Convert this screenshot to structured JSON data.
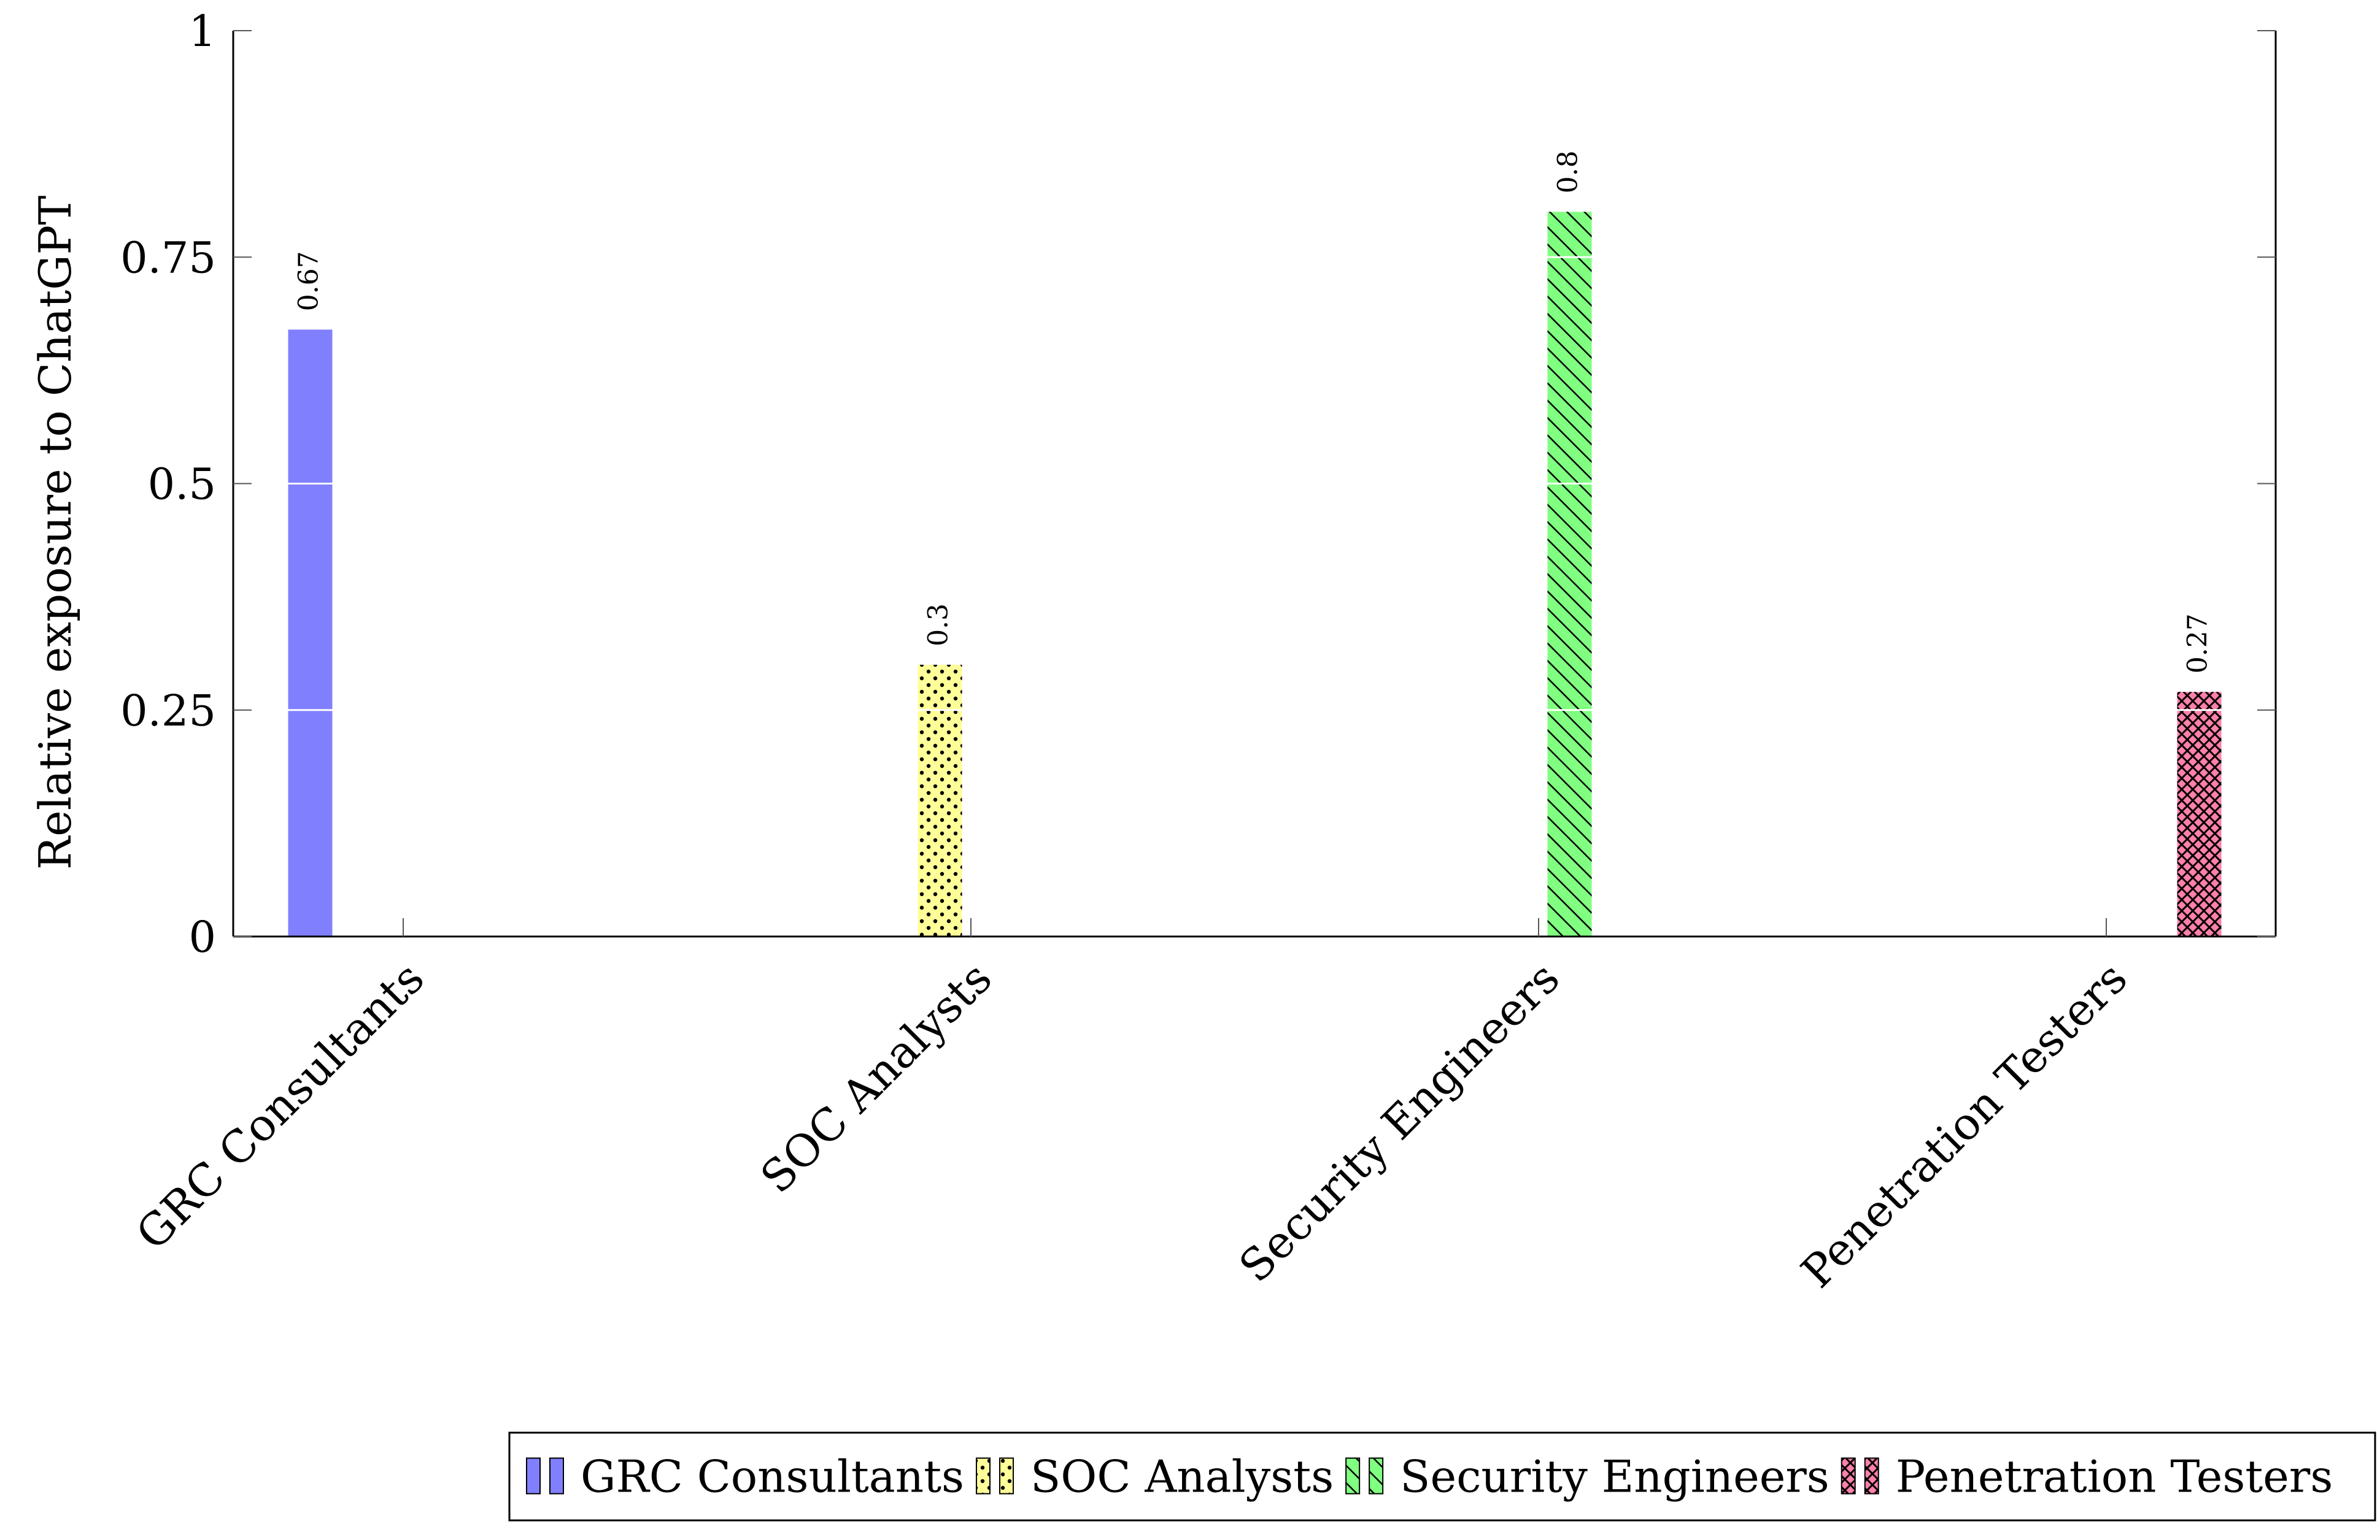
{
  "chart_data": {
    "type": "bar",
    "title": "",
    "xlabel": "",
    "ylabel": "Relative exposure to ChatGPT",
    "ylim": [
      0,
      1
    ],
    "yticks": [
      0,
      0.25,
      0.5,
      0.75,
      1
    ],
    "ytick_labels": [
      "0",
      "0.25",
      "0.5",
      "0.75",
      "1"
    ],
    "categories": [
      "GRC Consultants",
      "SOC Analysts",
      "Security Engineers",
      "Penetration Testers"
    ],
    "grid": "horizontal lines visible across bars only",
    "legend_position": "bottom-right",
    "series": [
      {
        "name": "GRC Consultants",
        "values": [
          0.67,
          null,
          null,
          null
        ],
        "color": "#8080ff",
        "pattern": "solid",
        "data_label": "0.67"
      },
      {
        "name": "SOC Analysts",
        "values": [
          null,
          0.3,
          null,
          null
        ],
        "color": "#ffff99",
        "pattern": "dots",
        "data_label": "0.3"
      },
      {
        "name": "Security Engineers",
        "values": [
          null,
          null,
          0.8,
          null
        ],
        "color": "#80ff80",
        "pattern": "diagonal-lines",
        "data_label": "0.8"
      },
      {
        "name": "Penetration Testers",
        "values": [
          null,
          null,
          null,
          0.27
        ],
        "color": "#ff80a8",
        "pattern": "crosshatch",
        "data_label": "0.27"
      }
    ]
  }
}
